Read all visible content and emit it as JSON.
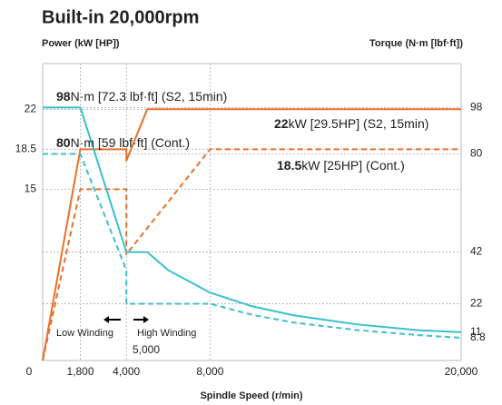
{
  "chart_data": {
    "type": "line",
    "title": "Built-in 20,000rpm",
    "y_label": "Power (kW [HP])",
    "y2_label": "Torque (N·m [lbf·ft])",
    "x_label": "Spindle Speed (r/min)",
    "xlim": [
      0,
      20000
    ],
    "xticks": [
      0,
      {
        "value": 1800,
        "label": "1,800"
      },
      {
        "value": 4000,
        "label": "4,000"
      },
      {
        "value": 8000,
        "label": "8,000"
      },
      {
        "value": 20000,
        "label": "20,000"
      }
    ],
    "ylim": [
      0,
      26
    ],
    "yticks": [
      15,
      18.5,
      22
    ],
    "y2lim": [
      0,
      115
    ],
    "y2ticks": [
      8.8,
      11,
      22,
      42,
      80,
      98
    ],
    "grid": true,
    "series": [
      {
        "color": "#e8702a",
        "dashed": false,
        "axis": "y",
        "x": [
          0,
          1800,
          4000,
          4000,
          5000,
          20000
        ],
        "values": [
          0,
          18.5,
          18.5,
          17.5,
          22,
          22
        ]
      },
      {
        "color": "#e8702a",
        "dashed": true,
        "axis": "y",
        "x": [
          0,
          1800,
          4000,
          4000,
          8000,
          20000
        ],
        "values": [
          0,
          15,
          15,
          9.3,
          18.5,
          18.5
        ]
      },
      {
        "color": "#3bbfcf",
        "dashed": false,
        "axis": "y2",
        "x": [
          0,
          1800,
          4000,
          5000,
          6000,
          8000,
          10000,
          12000,
          15000,
          18000,
          20000
        ],
        "values": [
          98,
          98,
          42,
          42,
          35,
          26.3,
          21,
          17.5,
          14,
          11.7,
          11
        ]
      },
      {
        "color": "#3bbfcf",
        "dashed": true,
        "axis": "y2",
        "x": [
          0,
          1800,
          4000,
          4000,
          8000,
          10000,
          12000,
          15000,
          18000,
          20000
        ],
        "values": [
          80,
          80,
          35,
          22,
          22,
          17.7,
          14.7,
          11.8,
          9.8,
          8.8
        ]
      }
    ],
    "annotations": [
      {
        "bold": "98",
        "text": "N·m [72.3 lbf·ft] (S2, 15min)"
      },
      {
        "bold": "80",
        "text": "N·m [59 lbf·ft] (Cont.)"
      },
      {
        "bold": "22",
        "text": "kW [29.5HP] (S2, 15min)"
      },
      {
        "bold": "18.5",
        "text": "kW [25HP] (Cont.)"
      }
    ],
    "notes": [
      "Low Winding",
      "High Winding",
      "5,000"
    ]
  }
}
